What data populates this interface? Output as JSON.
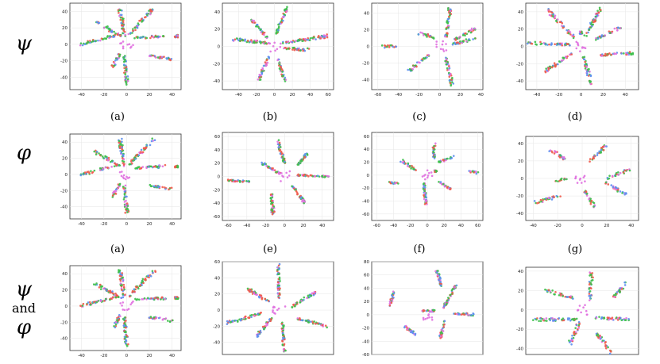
{
  "row_labels": [
    {
      "symbol": "ψ"
    },
    {
      "symbol": "φ"
    },
    {
      "symbol_a": "ψ",
      "conjunction": "and",
      "symbol_b": "φ"
    }
  ],
  "chart_data": [
    {
      "type": "scatter",
      "caption": "(a)",
      "xticks": [
        -40,
        -20,
        0,
        20,
        40
      ],
      "yticks": [
        40,
        20,
        0,
        -20,
        -40
      ],
      "xlim": [
        -50,
        48
      ],
      "ylim": [
        -55,
        50
      ],
      "arms": [
        [
          -40,
          0,
          -7,
          12
        ],
        [
          -28,
          28,
          -5,
          10
        ],
        [
          -6,
          44,
          -2,
          10
        ],
        [
          24,
          44,
          2,
          12
        ],
        [
          34,
          10,
          8,
          8
        ],
        [
          44,
          10,
          44,
          10
        ],
        [
          40,
          -18,
          20,
          -14
        ],
        [
          0,
          -48,
          -2,
          -14
        ],
        [
          -12,
          -28,
          -6,
          -12
        ]
      ]
    },
    {
      "type": "scatter",
      "caption": "(b)",
      "xticks": [
        -40,
        -20,
        0,
        20,
        40,
        60
      ],
      "yticks": [
        40,
        20,
        0,
        -20,
        -40
      ],
      "xlim": [
        -58,
        66
      ],
      "ylim": [
        -50,
        50
      ],
      "arms": [
        [
          -45,
          8,
          -8,
          4
        ],
        [
          -25,
          30,
          -8,
          10
        ],
        [
          14,
          46,
          2,
          14
        ],
        [
          60,
          12,
          10,
          4
        ],
        [
          38,
          -4,
          10,
          -2
        ],
        [
          12,
          -42,
          4,
          -14
        ],
        [
          -18,
          -40,
          -6,
          -12
        ]
      ]
    },
    {
      "type": "scatter",
      "caption": "(c)",
      "xticks": [
        -60,
        -40,
        -20,
        0,
        20,
        40
      ],
      "yticks": [
        40,
        20,
        0,
        -20,
        -40
      ],
      "xlim": [
        -66,
        42
      ],
      "ylim": [
        -52,
        52
      ],
      "arms": [
        [
          -55,
          0,
          -42,
          0
        ],
        [
          -20,
          16,
          -4,
          10
        ],
        [
          10,
          46,
          6,
          10
        ],
        [
          36,
          22,
          14,
          8
        ],
        [
          34,
          10,
          12,
          2
        ],
        [
          12,
          -46,
          6,
          -14
        ],
        [
          -30,
          -30,
          -10,
          -10
        ]
      ]
    },
    {
      "type": "scatter",
      "caption": "(d)",
      "xticks": [
        -40,
        -20,
        0,
        20,
        40
      ],
      "yticks": [
        40,
        20,
        0,
        -20,
        -40
      ],
      "xlim": [
        -50,
        52
      ],
      "ylim": [
        -50,
        50
      ],
      "arms": [
        [
          -48,
          4,
          -10,
          2
        ],
        [
          -30,
          42,
          -6,
          10
        ],
        [
          18,
          46,
          4,
          12
        ],
        [
          36,
          22,
          12,
          8
        ],
        [
          46,
          -8,
          16,
          -10
        ],
        [
          10,
          -44,
          2,
          -12
        ],
        [
          -34,
          -30,
          -8,
          -8
        ],
        [
          0,
          16,
          0,
          16
        ]
      ]
    },
    {
      "type": "scatter",
      "caption": "(a)",
      "xticks": [
        -40,
        -20,
        0,
        20,
        40
      ],
      "yticks": [
        40,
        20,
        0,
        -20,
        -40
      ],
      "xlim": [
        -50,
        48
      ],
      "ylim": [
        -55,
        50
      ],
      "arms": [
        [
          -40,
          0,
          -7,
          12
        ],
        [
          -28,
          28,
          -5,
          10
        ],
        [
          -6,
          44,
          -2,
          10
        ],
        [
          24,
          44,
          2,
          12
        ],
        [
          34,
          10,
          8,
          8
        ],
        [
          44,
          10,
          44,
          10
        ],
        [
          40,
          -18,
          20,
          -14
        ],
        [
          0,
          -48,
          -2,
          -14
        ],
        [
          -12,
          -28,
          -6,
          -12
        ]
      ]
    },
    {
      "type": "scatter",
      "caption": "(e)",
      "xticks": [
        -60,
        -40,
        -20,
        0,
        20,
        40
      ],
      "yticks": [
        60,
        40,
        20,
        0,
        -20,
        -40,
        -60
      ],
      "xlim": [
        -66,
        52
      ],
      "ylim": [
        -66,
        66
      ],
      "arms": [
        [
          -60,
          -6,
          -36,
          -8
        ],
        [
          -8,
          56,
          0,
          20
        ],
        [
          24,
          34,
          10,
          12
        ],
        [
          48,
          0,
          14,
          2
        ],
        [
          22,
          -40,
          8,
          -14
        ],
        [
          -12,
          -58,
          -14,
          -26
        ],
        [
          -24,
          20,
          -4,
          4
        ]
      ]
    },
    {
      "type": "scatter",
      "caption": "(f)",
      "xticks": [
        -60,
        -40,
        -20,
        0,
        20,
        40,
        60
      ],
      "yticks": [
        60,
        40,
        20,
        0,
        -20,
        -40,
        -60
      ],
      "xlim": [
        -66,
        66
      ],
      "ylim": [
        -70,
        66
      ],
      "arms": [
        [
          -46,
          -12,
          -34,
          -12
        ],
        [
          -30,
          22,
          -14,
          8
        ],
        [
          8,
          48,
          8,
          26
        ],
        [
          30,
          28,
          14,
          20
        ],
        [
          60,
          4,
          50,
          6
        ],
        [
          28,
          -22,
          14,
          -10
        ],
        [
          -2,
          -44,
          -4,
          -12
        ],
        [
          10,
          6,
          10,
          6
        ]
      ]
    },
    {
      "type": "scatter",
      "caption": "(g)",
      "xticks": [
        -40,
        -20,
        0,
        20,
        40
      ],
      "yticks": [
        40,
        20,
        0,
        -20,
        -40
      ],
      "xlim": [
        -46,
        46
      ],
      "ylim": [
        -48,
        48
      ],
      "arms": [
        [
          -40,
          -28,
          -18,
          -20
        ],
        [
          -28,
          34,
          -14,
          22
        ],
        [
          20,
          38,
          6,
          20
        ],
        [
          38,
          10,
          20,
          0
        ],
        [
          36,
          -18,
          18,
          -4
        ],
        [
          10,
          -32,
          2,
          -14
        ],
        [
          -22,
          -4,
          -12,
          0
        ]
      ]
    },
    {
      "type": "scatter",
      "caption": "",
      "xticks": [
        -40,
        -20,
        0,
        20,
        40
      ],
      "yticks": [
        40,
        20,
        0,
        -20,
        -40
      ],
      "xlim": [
        -50,
        48
      ],
      "ylim": [
        -55,
        50
      ],
      "arms": [
        [
          -40,
          0,
          -7,
          12
        ],
        [
          -28,
          28,
          -5,
          10
        ],
        [
          -6,
          44,
          -2,
          10
        ],
        [
          24,
          44,
          2,
          12
        ],
        [
          34,
          10,
          8,
          8
        ],
        [
          44,
          10,
          44,
          10
        ],
        [
          40,
          -18,
          20,
          -14
        ],
        [
          0,
          -48,
          -2,
          -14
        ],
        [
          -12,
          -28,
          -6,
          -12
        ]
      ]
    },
    {
      "type": "scatter",
      "caption": "",
      "xticks": [],
      "yticks": [
        60,
        40,
        20,
        0,
        -20,
        -40
      ],
      "xlim": [
        -62,
        60
      ],
      "ylim": [
        -55,
        60
      ],
      "arms": [
        [
          -56,
          -16,
          -20,
          -4
        ],
        [
          -34,
          26,
          -10,
          10
        ],
        [
          0,
          56,
          0,
          16
        ],
        [
          40,
          22,
          14,
          4
        ],
        [
          52,
          -20,
          20,
          -10
        ],
        [
          6,
          -52,
          4,
          -14
        ],
        [
          -26,
          -34,
          -8,
          -10
        ]
      ]
    },
    {
      "type": "scatter",
      "caption": "",
      "xticks": [],
      "yticks": [
        80,
        60,
        40,
        20,
        0,
        -20,
        -40,
        -60
      ],
      "xlim": [
        -70,
        70
      ],
      "ylim": [
        -60,
        80
      ],
      "arms": [
        [
          -42,
          34,
          -48,
          12
        ],
        [
          12,
          68,
          18,
          42
        ],
        [
          36,
          44,
          20,
          10
        ],
        [
          60,
          0,
          34,
          2
        ],
        [
          -30,
          -16,
          -14,
          -30
        ],
        [
          16,
          -36,
          22,
          -10
        ],
        [
          10,
          6,
          -6,
          6
        ]
      ]
    },
    {
      "type": "scatter",
      "caption": "",
      "xticks": [],
      "yticks": [
        40,
        20,
        0,
        -20,
        -40
      ],
      "xlim": [
        -46,
        46
      ],
      "ylim": [
        -46,
        44
      ],
      "arms": [
        [
          -40,
          -10,
          -4,
          -10
        ],
        [
          -30,
          20,
          -6,
          12
        ],
        [
          8,
          38,
          6,
          10
        ],
        [
          38,
          30,
          26,
          14
        ],
        [
          40,
          -10,
          10,
          -8
        ],
        [
          24,
          -44,
          12,
          -24
        ],
        [
          -10,
          -34,
          -2,
          -12
        ]
      ]
    }
  ],
  "series_colors": [
    "#f05a4a",
    "#5b8ff0",
    "#3cbf4a",
    "#e070e0"
  ]
}
